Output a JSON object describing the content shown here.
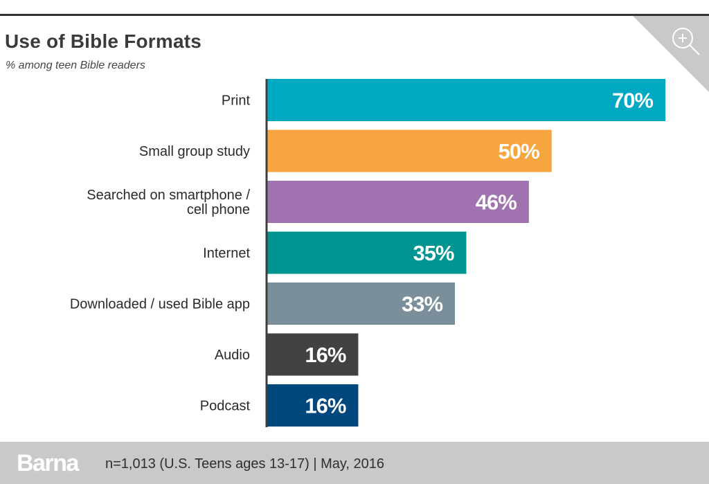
{
  "header": {
    "title": "Use of Bible Formats",
    "subtitle": "% among teen Bible readers",
    "zoom_icon": "zoom-in-icon"
  },
  "footer": {
    "brand": "Barna",
    "note": "n=1,013 (U.S. Teens ages 13-17) | May, 2016"
  },
  "chart_data": {
    "type": "bar",
    "orientation": "horizontal",
    "title": "Use of Bible Formats",
    "subtitle": "% among teen Bible readers",
    "xlabel": "",
    "ylabel": "",
    "xlim": [
      0,
      70
    ],
    "grid": false,
    "legend": "none",
    "categories": [
      [
        "Print"
      ],
      [
        "Small group study"
      ],
      [
        "Searched on smartphone /",
        "cell phone"
      ],
      [
        "Internet"
      ],
      [
        "Downloaded / used Bible app"
      ],
      [
        "Audio"
      ],
      [
        "Podcast"
      ]
    ],
    "values": [
      70,
      50,
      46,
      35,
      33,
      16,
      16
    ],
    "value_labels": [
      "70%",
      "50%",
      "46%",
      "35%",
      "33%",
      "16%",
      "16%"
    ],
    "colors": [
      "#00a9c2",
      "#f7a541",
      "#a072b0",
      "#009591",
      "#7b8f9b",
      "#424242",
      "#00477e"
    ]
  }
}
